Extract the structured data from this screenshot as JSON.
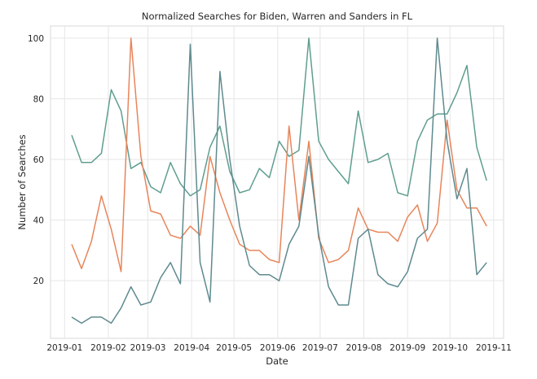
{
  "chart_data": {
    "type": "line",
    "title": "Normalized Searches for Biden, Warren and Sanders in FL",
    "xlabel": "Date",
    "ylabel": "Number of Searches",
    "x_ticks": [
      "2019-01",
      "2019-02",
      "2019-03",
      "2019-04",
      "2019-05",
      "2019-06",
      "2019-07",
      "2019-08",
      "2019-09",
      "2019-10",
      "2019-11"
    ],
    "y_ticks": [
      20,
      40,
      60,
      80,
      100
    ],
    "xlim": [
      "2018-12-22",
      "2019-11-08"
    ],
    "ylim": [
      1,
      104
    ],
    "grid": true,
    "x": [
      "2019-01-06",
      "2019-01-13",
      "2019-01-20",
      "2019-01-27",
      "2019-02-03",
      "2019-02-10",
      "2019-02-17",
      "2019-02-24",
      "2019-03-03",
      "2019-03-10",
      "2019-03-17",
      "2019-03-24",
      "2019-03-31",
      "2019-04-07",
      "2019-04-14",
      "2019-04-21",
      "2019-04-28",
      "2019-05-05",
      "2019-05-12",
      "2019-05-19",
      "2019-05-26",
      "2019-06-02",
      "2019-06-09",
      "2019-06-16",
      "2019-06-23",
      "2019-06-30",
      "2019-07-07",
      "2019-07-14",
      "2019-07-21",
      "2019-07-28",
      "2019-08-04",
      "2019-08-11",
      "2019-08-18",
      "2019-08-25",
      "2019-09-01",
      "2019-09-08",
      "2019-09-15",
      "2019-09-22",
      "2019-09-29",
      "2019-10-06",
      "2019-10-13",
      "2019-10-20",
      "2019-10-27"
    ],
    "series": [
      {
        "color": "#5f9e8f",
        "values": [
          68,
          59,
          59,
          62,
          83,
          76,
          57,
          59,
          51,
          49,
          59,
          52,
          48,
          50,
          64,
          71,
          56,
          49,
          50,
          57,
          54,
          66,
          61,
          63,
          100,
          66,
          60,
          56,
          52,
          76,
          59,
          60,
          62,
          49,
          48,
          66,
          73,
          75,
          75,
          82,
          91,
          64,
          53
        ]
      },
      {
        "color": "#e8855a",
        "values": [
          32,
          24,
          33,
          48,
          37,
          23,
          100,
          61,
          43,
          42,
          35,
          34,
          38,
          35,
          61,
          49,
          40,
          32,
          30,
          30,
          27,
          26,
          71,
          40,
          66,
          34,
          26,
          27,
          30,
          44,
          37,
          36,
          36,
          33,
          41,
          45,
          33,
          39,
          73,
          50,
          44,
          44,
          38
        ]
      },
      {
        "color": "#5e8a8f",
        "values": [
          8,
          6,
          8,
          8,
          6,
          11,
          18,
          12,
          13,
          21,
          26,
          19,
          98,
          26,
          13,
          89,
          60,
          38,
          25,
          22,
          22,
          20,
          32,
          38,
          61,
          35,
          18,
          12,
          12,
          34,
          37,
          22,
          19,
          18,
          23,
          34,
          37,
          100,
          66,
          47,
          57,
          22,
          26
        ]
      }
    ]
  }
}
